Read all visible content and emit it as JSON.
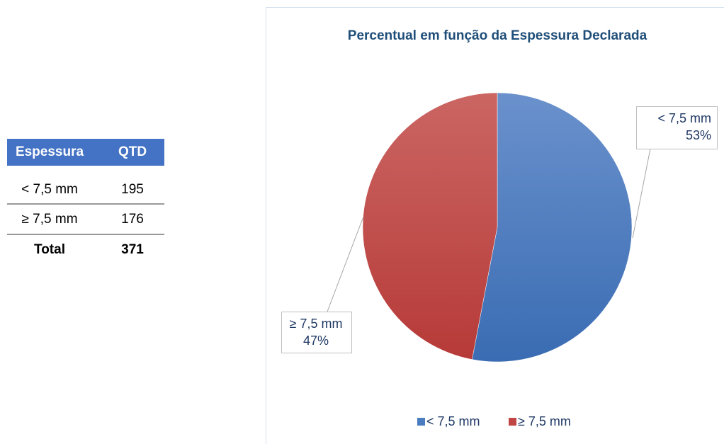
{
  "table": {
    "header": [
      "Espessura",
      "QTD"
    ],
    "rows": [
      [
        "< 7,5 mm",
        195
      ],
      [
        "≥ 7,5 mm",
        176
      ]
    ],
    "total": [
      "Total",
      371
    ]
  },
  "chart_data": {
    "type": "pie",
    "title": "Percentual em função da Espessura Declarada",
    "categories": [
      "< 7,5 mm",
      "≥ 7,5 mm"
    ],
    "values": [
      53,
      47
    ],
    "value_labels": [
      "53%",
      "47%"
    ],
    "colors": [
      "#4a7cc0",
      "#c04545"
    ],
    "legend": "bottom"
  }
}
